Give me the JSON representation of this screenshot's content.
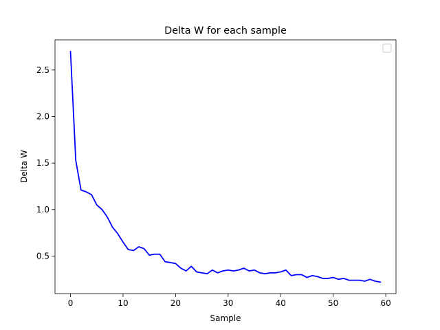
{
  "chart_data": {
    "type": "line",
    "title": "Delta W for each sample",
    "xlabel": "Sample",
    "ylabel": "Delta W",
    "xlim": [
      -2.95,
      61.95
    ],
    "ylim": [
      0.097,
      2.824
    ],
    "xticks": [
      0,
      10,
      20,
      30,
      40,
      50,
      60
    ],
    "yticks": [
      0.5,
      1.0,
      1.5,
      2.0,
      2.5
    ],
    "grid": false,
    "legend": "top-right",
    "series": [
      {
        "color": "#0000ff",
        "x": [
          0,
          1,
          2,
          3,
          4,
          5,
          6,
          7,
          8,
          9,
          10,
          11,
          12,
          13,
          14,
          15,
          16,
          17,
          18,
          19,
          20,
          21,
          22,
          23,
          24,
          25,
          26,
          27,
          28,
          29,
          30,
          31,
          32,
          33,
          34,
          35,
          36,
          37,
          38,
          39,
          40,
          41,
          42,
          43,
          44,
          45,
          46,
          47,
          48,
          49,
          50,
          51,
          52,
          53,
          54,
          55,
          56,
          57,
          58,
          59
        ],
        "values": [
          2.7,
          1.53,
          1.21,
          1.19,
          1.16,
          1.05,
          1.0,
          0.92,
          0.81,
          0.74,
          0.65,
          0.57,
          0.56,
          0.6,
          0.58,
          0.51,
          0.52,
          0.52,
          0.44,
          0.43,
          0.42,
          0.37,
          0.34,
          0.39,
          0.33,
          0.32,
          0.31,
          0.35,
          0.32,
          0.34,
          0.35,
          0.34,
          0.35,
          0.37,
          0.34,
          0.35,
          0.32,
          0.31,
          0.32,
          0.32,
          0.33,
          0.35,
          0.29,
          0.3,
          0.3,
          0.27,
          0.29,
          0.28,
          0.26,
          0.26,
          0.27,
          0.25,
          0.26,
          0.24,
          0.24,
          0.24,
          0.23,
          0.25,
          0.23,
          0.22
        ]
      }
    ]
  }
}
